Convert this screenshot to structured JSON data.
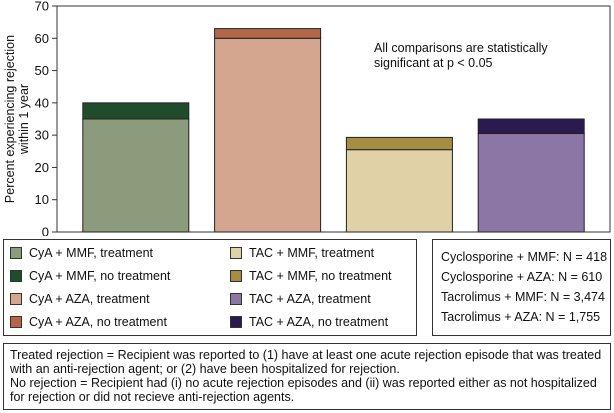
{
  "chart_data": {
    "type": "bar",
    "stacked": true,
    "ylabel": "Percent experiencing rejection within 1 year",
    "ylim": [
      0,
      70
    ],
    "yticks": [
      0,
      10,
      20,
      30,
      40,
      50,
      60,
      70
    ],
    "grid": false,
    "legend_placement": "bottom",
    "annotation": "All comparisons are statistically significant at p < 0.05",
    "categories": [
      "CyA + MMF",
      "CyA + AZA",
      "TAC + MMF",
      "TAC + AZA"
    ],
    "bars": [
      {
        "category": "CyA + MMF",
        "treatment": 35,
        "no_treatment": 5,
        "total": 40,
        "treatment_color": "#8b9b7b",
        "no_treatment_color": "#1f4d2b"
      },
      {
        "category": "CyA + AZA",
        "treatment": 60,
        "no_treatment": 3,
        "total": 63,
        "treatment_color": "#d4a58f",
        "no_treatment_color": "#b5664a"
      },
      {
        "category": "TAC + MMF",
        "treatment": 25.5,
        "no_treatment": 3.8,
        "total": 29.3,
        "treatment_color": "#e0d2a6",
        "no_treatment_color": "#a38e43"
      },
      {
        "category": "TAC + AZA",
        "treatment": 30.5,
        "no_treatment": 4.5,
        "total": 35,
        "treatment_color": "#8c76a6",
        "no_treatment_color": "#2a1a52"
      }
    ]
  },
  "legend": {
    "items": [
      {
        "label": "CyA + MMF, treatment",
        "color": "#8b9b7b"
      },
      {
        "label": "CyA + MMF, no treatment",
        "color": "#1f4d2b"
      },
      {
        "label": "CyA + AZA, treatment",
        "color": "#d4a58f"
      },
      {
        "label": "CyA + AZA, no treatment",
        "color": "#b5664a"
      },
      {
        "label": "TAC + MMF, treatment",
        "color": "#e0d2a6"
      },
      {
        "label": "TAC + MMF, no treatment",
        "color": "#a38e43"
      },
      {
        "label": "TAC + AZA, treatment",
        "color": "#8c76a6"
      },
      {
        "label": "TAC + AZA, no treatment",
        "color": "#2a1a52"
      }
    ]
  },
  "sample_sizes": [
    "Cyclosporine + MMF: N = 418",
    "Cyclosporine + AZA: N = 610",
    "Tacrolimus + MMF: N = 3,474",
    "Tacrolimus + AZA: N = 1,755"
  ],
  "notes": [
    "Treated rejection = Recipient was reported to (1) have at least one acute rejection episode that was treated with an anti-rejection agent; or (2) have been hospitalized for rejection.",
    "No rejection = Recipient had (i) no acute rejection episodes and (ii) was reported either as not hospitalized for rejection or did not recieve anti-rejection agents."
  ]
}
